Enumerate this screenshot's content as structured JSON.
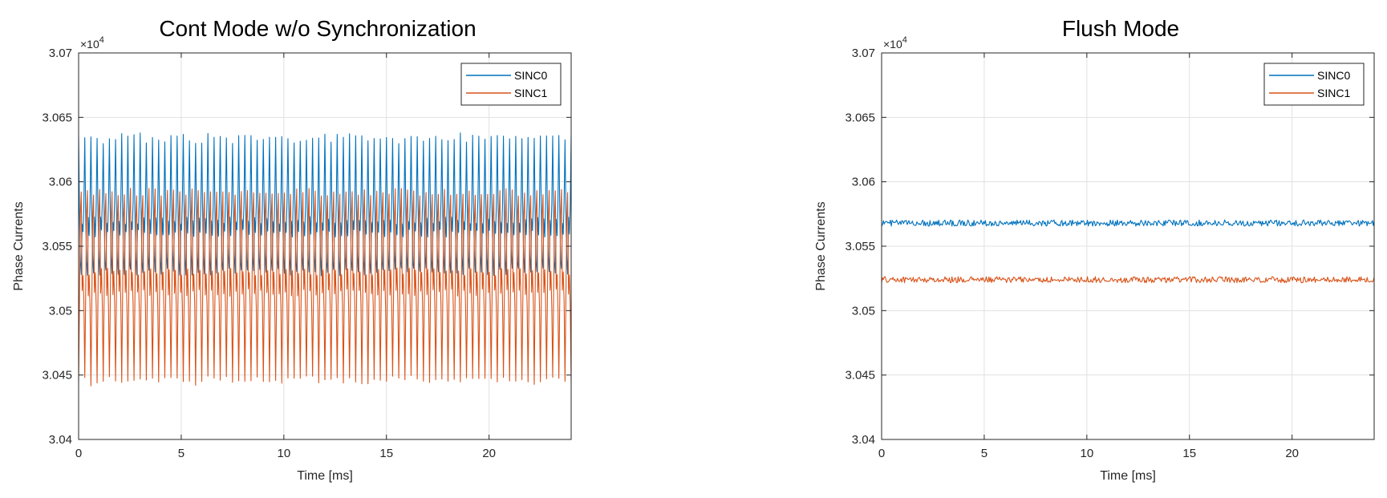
{
  "chart_data": [
    {
      "type": "line",
      "title": "Cont Mode w/o Synchronization",
      "xlabel": "Time [ms]",
      "ylabel": "Phase Currents",
      "xlim": [
        0,
        24
      ],
      "ylim": [
        30400,
        30700
      ],
      "xticks": [
        0,
        5,
        10,
        15,
        20
      ],
      "xtick_labels": [
        "0",
        "5",
        "10",
        "15",
        "20"
      ],
      "yticks": [
        30400,
        30450,
        30500,
        30550,
        30600,
        30650,
        30700
      ],
      "ytick_labels": [
        "3.04",
        "3.045",
        "3.05",
        "3.055",
        "3.06",
        "3.065",
        "3.07"
      ],
      "y_exponent_label": "×10",
      "y_exponent_power": "4",
      "grid": true,
      "legend_position": "top-right",
      "series": [
        {
          "name": "SINC0",
          "color": "#0072BD",
          "pattern": "periodic oscillation, period ≈ 0.3 ms",
          "peak": 30634,
          "low_band": [
            30530,
            30578
          ],
          "mean": 30565
        },
        {
          "name": "SINC1",
          "color": "#D95319",
          "pattern": "periodic oscillation, period ≈ 0.3 ms",
          "trough": 30446,
          "high_band": [
            30508,
            30592
          ],
          "mean": 30520
        }
      ]
    },
    {
      "type": "line",
      "title": "Flush Mode",
      "xlabel": "Time [ms]",
      "ylabel": "Phase Currents",
      "xlim": [
        0,
        24
      ],
      "ylim": [
        30400,
        30700
      ],
      "xticks": [
        0,
        5,
        10,
        15,
        20
      ],
      "xtick_labels": [
        "0",
        "5",
        "10",
        "15",
        "20"
      ],
      "yticks": [
        30400,
        30450,
        30500,
        30550,
        30600,
        30650,
        30700
      ],
      "ytick_labels": [
        "3.04",
        "3.045",
        "3.05",
        "3.055",
        "3.06",
        "3.065",
        "3.07"
      ],
      "y_exponent_label": "×10",
      "y_exponent_power": "4",
      "grid": true,
      "legend_position": "top-right",
      "series": [
        {
          "name": "SINC0",
          "color": "#0072BD",
          "pattern": "nearly constant with small noise",
          "mean": 30568,
          "noise": 1.5
        },
        {
          "name": "SINC1",
          "color": "#D95319",
          "pattern": "nearly constant with small noise",
          "mean": 30524,
          "noise": 1.5
        }
      ]
    }
  ]
}
